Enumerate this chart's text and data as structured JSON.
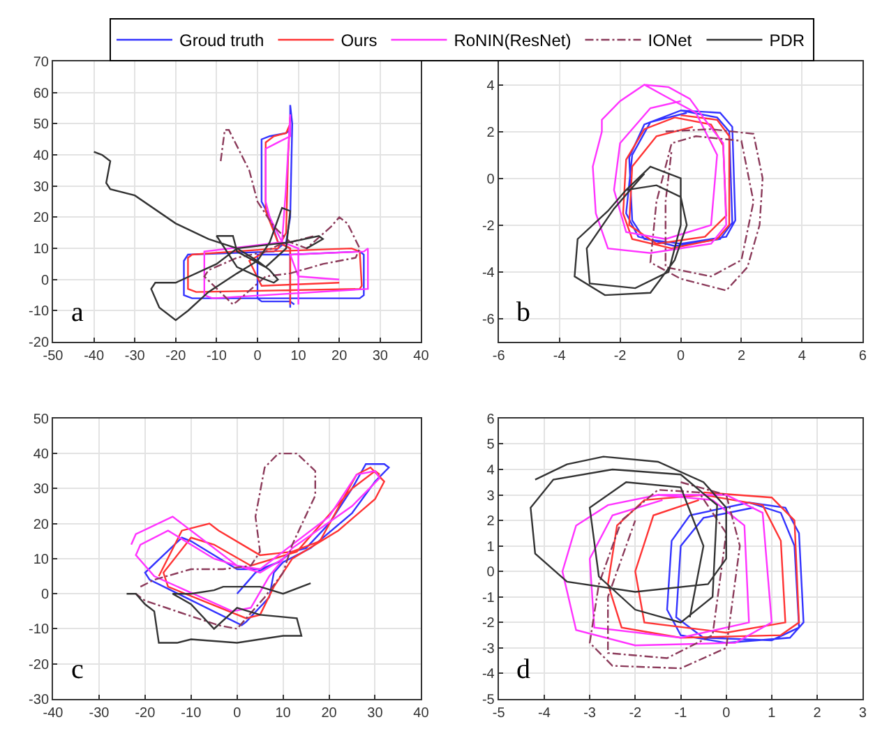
{
  "chart_data": [
    {
      "type": "line",
      "legend": "top",
      "grid": true,
      "line_style": "solid",
      "annotations": [
        "a"
      ],
      "xlim": [
        -50,
        40
      ],
      "ylim": [
        -20,
        70
      ],
      "xticks": [
        -50,
        -40,
        -30,
        -20,
        -10,
        0,
        10,
        20,
        30,
        40
      ],
      "yticks": [
        -20,
        -10,
        0,
        10,
        20,
        30,
        40,
        50,
        60,
        70
      ],
      "series": [
        {
          "name": "Groud truth",
          "color": "#3333ff",
          "x": [
            8,
            8,
            5,
            3,
            1,
            1,
            3,
            7,
            8,
            8,
            8.5,
            8,
            7,
            4,
            -17,
            -18,
            -18,
            -16,
            25,
            26,
            26,
            25,
            8,
            0,
            0,
            1,
            8,
            9
          ],
          "values": [
            -9,
            10,
            12,
            20,
            25,
            45,
            46,
            47,
            48,
            56,
            50,
            20,
            12,
            9,
            8,
            6,
            -5,
            -6,
            -6,
            -5,
            8,
            9,
            8,
            8,
            -6,
            -7,
            -7,
            -8
          ]
        },
        {
          "name": "Ours",
          "color": "#ff3333",
          "x": [
            8,
            8,
            5,
            2,
            2,
            4,
            7,
            8,
            8,
            7.5,
            7,
            5,
            -16,
            -17,
            -17,
            -15,
            25,
            25.5,
            25,
            23,
            2,
            -2,
            1,
            20
          ],
          "values": [
            -8,
            10,
            12,
            22,
            44,
            46,
            47,
            50,
            52,
            40,
            15,
            10,
            8,
            7,
            -3,
            -4,
            -3,
            -2,
            9,
            10,
            9,
            6,
            -2,
            -1
          ]
        },
        {
          "name": "RoNIN(ResNet)",
          "color": "#ff33ff",
          "x": [
            10,
            10,
            6,
            3,
            2,
            2,
            5,
            8,
            8,
            7,
            6,
            -13,
            -13,
            -11,
            27,
            27,
            26,
            8,
            10,
            20
          ],
          "values": [
            -8,
            10,
            12,
            20,
            25,
            42,
            44,
            46,
            53,
            30,
            12,
            9,
            -5,
            -6,
            -3,
            10,
            9,
            8,
            1,
            0
          ]
        },
        {
          "name": "IONet",
          "color": "#8b3a5a",
          "line_style": "dashed",
          "x": [
            -9,
            -8,
            -7,
            -2,
            0,
            4,
            8,
            12,
            18,
            20,
            22,
            25,
            24,
            16,
            8,
            2,
            -5,
            -6,
            -13,
            -12,
            -5,
            2,
            5,
            14
          ],
          "values": [
            38,
            48,
            48,
            35,
            25,
            17,
            12,
            10,
            17,
            20,
            18,
            10,
            7,
            5,
            2,
            1,
            -7,
            -8,
            1,
            3,
            7,
            9,
            11,
            14
          ]
        },
        {
          "name": "PDR",
          "color": "#333333",
          "x": [
            -40,
            -38,
            -36,
            -37,
            -36,
            -30,
            -20,
            -12,
            -5,
            0,
            3,
            5,
            4,
            0,
            -5,
            -10,
            -6,
            -5,
            2,
            7,
            8,
            6,
            3,
            0,
            -5,
            -12,
            -17,
            -20,
            -24,
            -26,
            -25,
            -20,
            -10,
            -5,
            8,
            15,
            16,
            12
          ],
          "values": [
            41,
            40,
            38,
            31,
            29,
            27,
            18,
            13,
            10,
            6,
            3,
            0,
            -1,
            1,
            4,
            14,
            14,
            9,
            4,
            10,
            22,
            23,
            12,
            6,
            2,
            -4,
            -10,
            -13,
            -9,
            -3,
            -1,
            -1,
            5,
            10,
            12,
            14,
            13,
            10
          ]
        }
      ]
    },
    {
      "type": "line",
      "grid": true,
      "line_style": "solid",
      "annotations": [
        "b"
      ],
      "xlim": [
        -6,
        6
      ],
      "ylim": [
        -7,
        5
      ],
      "xticks": [
        -6,
        -4,
        -2,
        0,
        2,
        4,
        6
      ],
      "yticks": [
        -6,
        -4,
        -2,
        0,
        2,
        4
      ],
      "series": [
        {
          "color": "#3333ff",
          "x": [
            0,
            1.3,
            1.7,
            1.8,
            1.5,
            0,
            -1.2,
            -1.6,
            -1.7,
            -1.2,
            0,
            1.2,
            1.6,
            1.7,
            1.3,
            -0.2,
            -1.4,
            -1.8,
            -1.6,
            -1,
            0.2
          ],
          "values": [
            2.9,
            2.8,
            2.2,
            -1.8,
            -2.5,
            -2.8,
            -2.6,
            -1.8,
            0.9,
            2.3,
            2.9,
            2.6,
            2,
            -1.9,
            -2.6,
            -2.9,
            -2.5,
            -1.5,
            1,
            2.4,
            2.8
          ]
        },
        {
          "color": "#ff3333",
          "x": [
            0,
            1.2,
            1.6,
            1.6,
            1.2,
            -0.3,
            -1.6,
            -1.9,
            -1.8,
            -1.2,
            -0.2,
            1,
            1.4,
            1.5,
            0.8,
            -0.8,
            -1.7,
            -1.6,
            -0.8,
            0.4
          ],
          "values": [
            2.7,
            2.5,
            1.8,
            -2,
            -2.6,
            -3,
            -2.6,
            -1.5,
            0.8,
            2.1,
            2.6,
            2.3,
            1.4,
            -1.6,
            -2.5,
            -2.8,
            -2,
            0.5,
            1.8,
            2.2
          ]
        },
        {
          "color": "#ff33ff",
          "x": [
            -1.2,
            -0.4,
            0.3,
            0.8,
            1.4,
            1.5,
            1,
            -1,
            -2.4,
            -2.8,
            -2.9,
            -2.6,
            -2.6,
            -2,
            -1.2,
            -0.5,
            0.5,
            1.2,
            1,
            -0.5,
            -1.8,
            -2.2,
            -2,
            -1,
            0
          ],
          "values": [
            4,
            3.9,
            3.4,
            2.5,
            1.5,
            -2,
            -2.8,
            -3.2,
            -3,
            -1.5,
            0.5,
            2,
            2.5,
            3.3,
            4,
            3.5,
            2.8,
            1,
            -2,
            -2.6,
            -2.3,
            -0.5,
            1.5,
            3,
            3.3
          ]
        },
        {
          "color": "#8b3a5a",
          "line_style": "dashed",
          "x": [
            -0.5,
            1,
            2.4,
            2.7,
            2.6,
            2.2,
            1.5,
            0,
            -1,
            -0.8,
            -0.3,
            0.5,
            2,
            2.4,
            2,
            1,
            -0.5,
            -0.5,
            -0.3
          ],
          "values": [
            2,
            2.1,
            1.9,
            0,
            -2,
            -3.8,
            -4.8,
            -4.3,
            -3.6,
            -1,
            1.5,
            1.8,
            1.6,
            -1,
            -3.5,
            -4.2,
            -3.8,
            -1,
            1.2
          ]
        },
        {
          "color": "#333333",
          "x": [
            -1.8,
            -0.8,
            0,
            0.2,
            -0.2,
            -1,
            -2.5,
            -3.5,
            -3.4,
            -2.4,
            -1.8,
            -1,
            0,
            0,
            -0.4,
            -1.5,
            -3,
            -3.1,
            -2.2,
            -1.2
          ],
          "values": [
            -0.5,
            -0.3,
            -0.8,
            -2,
            -3.5,
            -4.9,
            -5,
            -4.2,
            -2.6,
            -1.4,
            -0.5,
            0.5,
            0,
            -2,
            -4,
            -4.7,
            -4.5,
            -3,
            -1.3,
            0.2
          ]
        }
      ]
    },
    {
      "type": "line",
      "grid": true,
      "line_style": "solid",
      "annotations": [
        "c"
      ],
      "xlim": [
        -40,
        40
      ],
      "ylim": [
        -30,
        50
      ],
      "xticks": [
        -40,
        -30,
        -20,
        -10,
        0,
        10,
        20,
        30,
        40
      ],
      "yticks": [
        -30,
        -20,
        -10,
        0,
        10,
        20,
        30,
        40,
        50
      ],
      "series": [
        {
          "color": "#3333ff",
          "x": [
            0,
            2,
            4,
            9,
            12,
            15,
            20,
            25,
            28,
            32,
            33,
            30,
            25,
            16,
            10,
            8,
            7,
            2,
            1,
            -19,
            -20,
            -12,
            -10,
            0,
            5,
            9
          ],
          "values": [
            0,
            3,
            6,
            9,
            12,
            13,
            20,
            30,
            37,
            37,
            36,
            32,
            23,
            13,
            9,
            6,
            -1,
            -8,
            -9,
            4,
            6,
            16,
            15,
            7,
            7,
            9
          ]
        },
        {
          "color": "#ff3333",
          "x": [
            -17,
            -12,
            -6,
            -4,
            5,
            12,
            18,
            26,
            29,
            32,
            30,
            22,
            12,
            8,
            5,
            2,
            -15,
            -16,
            -10,
            -5,
            3,
            13,
            25,
            30,
            31
          ],
          "values": [
            5,
            18,
            20,
            18,
            11,
            12,
            15,
            34,
            36,
            32,
            27,
            18,
            10,
            2,
            -6,
            -7,
            2,
            6,
            16,
            14,
            8,
            12,
            30,
            35,
            34
          ]
        },
        {
          "color": "#ff33ff",
          "x": [
            -23,
            -22,
            -14,
            -12,
            0,
            5,
            10,
            20,
            26,
            30,
            31,
            25,
            12,
            7,
            3,
            -1,
            -18,
            -22,
            -21,
            -15,
            -5,
            5,
            10
          ],
          "values": [
            14,
            17,
            22,
            20,
            8,
            7,
            12,
            22,
            34,
            35,
            33,
            25,
            13,
            5,
            -4,
            -5,
            5,
            11,
            14,
            18,
            10,
            6,
            10
          ]
        },
        {
          "color": "#8b3a5a",
          "line_style": "dashed",
          "x": [
            -21,
            -18,
            -10,
            -3,
            3,
            5,
            4,
            6,
            9,
            13,
            17,
            17,
            12,
            10,
            6,
            0,
            -4,
            -20,
            -22
          ],
          "values": [
            2,
            4,
            7,
            7,
            8,
            12,
            22,
            36,
            40,
            40,
            35,
            28,
            14,
            6,
            -1,
            -10,
            -9,
            -2,
            0
          ]
        },
        {
          "color": "#333333",
          "x": [
            -24,
            -22,
            -20,
            -18,
            -17,
            -13,
            -10,
            0,
            10,
            14,
            13,
            5,
            0,
            -5,
            -10,
            -14,
            -10,
            -5,
            -3,
            5,
            10,
            16
          ],
          "values": [
            0,
            0,
            -3,
            -5,
            -14,
            -14,
            -13,
            -14,
            -12,
            -12,
            -7,
            -6,
            -4,
            -10,
            -3,
            0,
            0,
            1,
            2,
            2,
            0,
            3
          ]
        }
      ]
    },
    {
      "type": "line",
      "grid": true,
      "line_style": "solid",
      "annotations": [
        "d"
      ],
      "xlim": [
        -5,
        3
      ],
      "ylim": [
        -5,
        6
      ],
      "xticks": [
        -5,
        -4,
        -3,
        -2,
        -1,
        0,
        1,
        2,
        3
      ],
      "yticks": [
        -5,
        -4,
        -3,
        -2,
        -1,
        0,
        1,
        2,
        3,
        4,
        5,
        6
      ],
      "series": [
        {
          "color": "#3333ff",
          "x": [
            0.5,
            1.3,
            1.6,
            1.7,
            1.4,
            0,
            -1,
            -1.3,
            -1.2,
            -0.8,
            0.5,
            1.2,
            1.5,
            1.6,
            1,
            -0.5,
            -1.1,
            -1,
            -0.5,
            0.6
          ],
          "values": [
            2.7,
            2.5,
            1.5,
            -2,
            -2.6,
            -2.8,
            -2.5,
            -1.5,
            1.2,
            2.2,
            2.7,
            2.3,
            1,
            -2.2,
            -2.7,
            -2.6,
            -1.8,
            1,
            2.1,
            2.5
          ]
        },
        {
          "color": "#ff3333",
          "x": [
            -0.5,
            1,
            1.5,
            1.6,
            1.2,
            -1,
            -2.3,
            -2.6,
            -2.4,
            -1.8,
            -0.5,
            0.8,
            1.2,
            1.3,
            0,
            -1.8,
            -2,
            -1.6,
            -0.6
          ],
          "values": [
            3.1,
            2.9,
            2,
            -2,
            -2.5,
            -2.6,
            -2.2,
            -0.5,
            1.8,
            2.8,
            3,
            2.6,
            1.2,
            -2,
            -2.4,
            -2,
            0,
            2.2,
            2.8
          ]
        },
        {
          "color": "#ff33ff",
          "x": [
            -1.5,
            0,
            0.8,
            1,
            0.2,
            -2,
            -3.3,
            -3.6,
            -3.3,
            -2.6,
            -1.5,
            -0.3,
            0.4,
            0.5,
            -1,
            -2.9,
            -3,
            -2.5,
            -1.4
          ],
          "values": [
            3,
            3,
            2.3,
            -2,
            -2.8,
            -2.9,
            -2.3,
            0,
            1.8,
            2.6,
            3,
            2.8,
            1.8,
            -2,
            -2.6,
            -2.2,
            0.5,
            2.2,
            2.8
          ]
        },
        {
          "color": "#8b3a5a",
          "line_style": "dashed",
          "x": [
            -1,
            0,
            0.3,
            0,
            -1,
            -2.5,
            -3,
            -2.8,
            -2.3,
            -1.5,
            -0.6,
            0,
            -0.3,
            -1.3,
            -2.6,
            -2.6,
            -2
          ],
          "values": [
            3.5,
            3,
            1,
            -3,
            -3.8,
            -3.7,
            -2.8,
            -0.5,
            2,
            3.2,
            3.1,
            1.5,
            -2.5,
            -3.4,
            -3.2,
            -1,
            2
          ]
        },
        {
          "color": "#333333",
          "x": [
            -4.2,
            -3.5,
            -2.7,
            -1.5,
            -0.5,
            0,
            0,
            -0.4,
            -2,
            -3.5,
            -4.2,
            -4.3,
            -3.8,
            -2.5,
            -1,
            -0.2,
            -0.3,
            -1,
            -2,
            -2.8,
            -3,
            -2.2,
            -1,
            -0.5,
            -0.8
          ],
          "values": [
            3.6,
            4.2,
            4.5,
            4.3,
            3.5,
            2.5,
            0.5,
            -0.5,
            -0.8,
            -0.4,
            0.7,
            2.5,
            3.6,
            4,
            3.8,
            2.6,
            -1,
            -2,
            -1.5,
            -0.2,
            2.5,
            3.5,
            3.3,
            1,
            -1.8
          ]
        }
      ]
    }
  ]
}
